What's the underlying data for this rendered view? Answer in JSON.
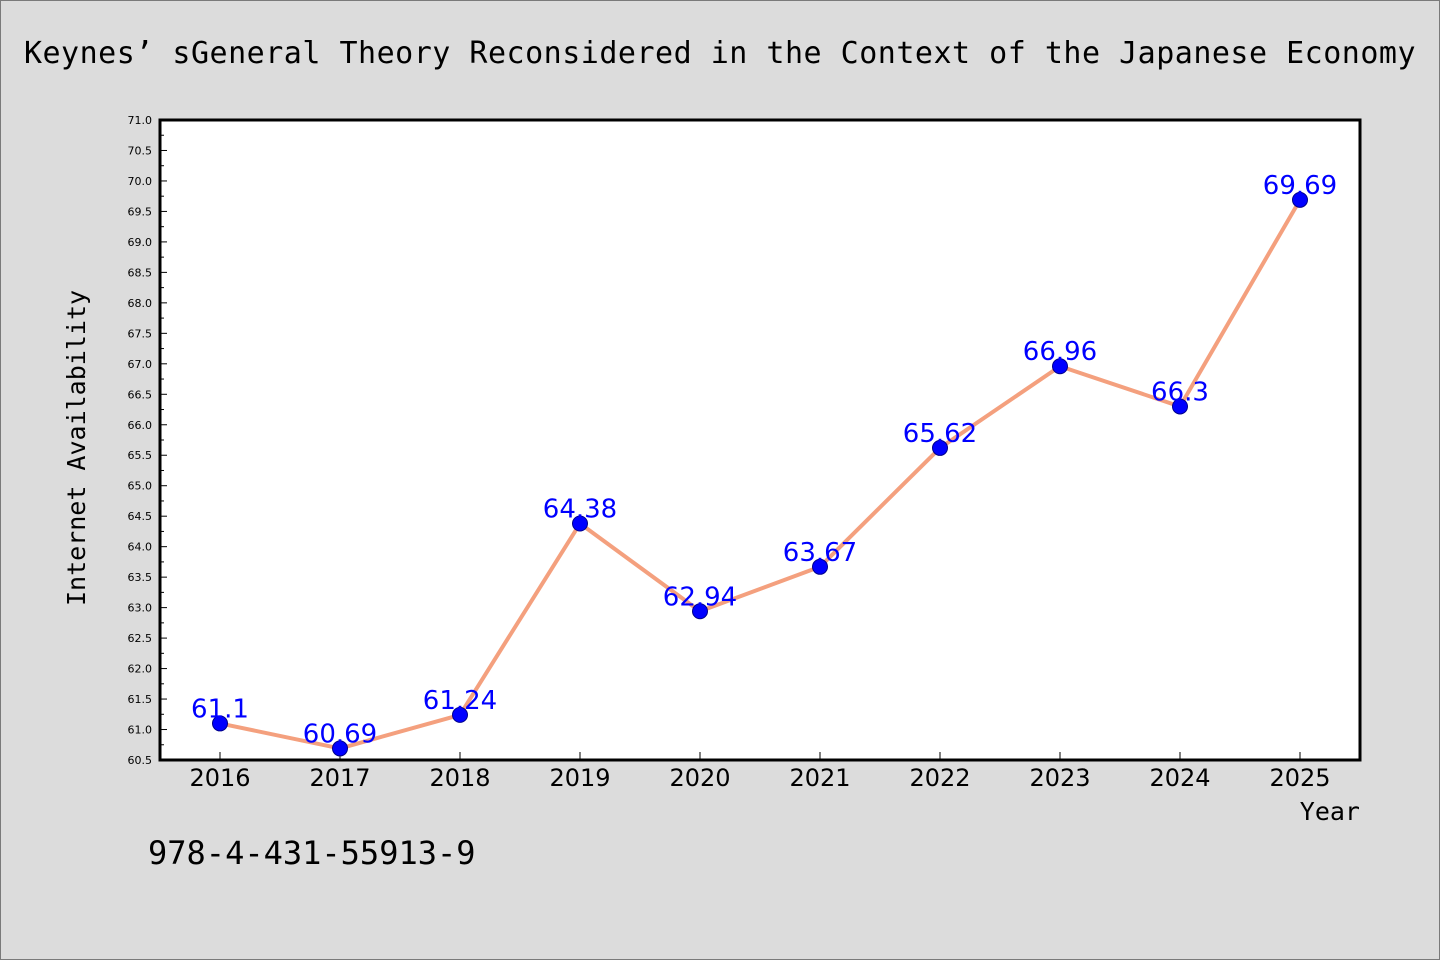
{
  "title": "Keynes’ sGeneral Theory Reconsidered in the Context of the Japanese Economy",
  "footer_text": "978-4-431-55913-9",
  "colors": {
    "background": "#dcdcdc",
    "plot_background": "#ffffff",
    "line": "#f4a07e",
    "marker": "#0000ff",
    "data_label": "#0000ff"
  },
  "chart_data": {
    "type": "line",
    "title": "Keynes’ sGeneral Theory Reconsidered in the Context of the Japanese Economy",
    "xlabel": "Year",
    "ylabel": "Internet Availability",
    "categories": [
      "2016",
      "2017",
      "2018",
      "2019",
      "2020",
      "2021",
      "2022",
      "2023",
      "2024",
      "2025"
    ],
    "series": [
      {
        "values": [
          61.1,
          60.69,
          61.24,
          64.38,
          62.94,
          63.67,
          65.62,
          66.96,
          66.3,
          69.69
        ],
        "data_labels": [
          "61.1",
          "60.69",
          "61.24",
          "64.38",
          "62.94",
          "63.67",
          "65.62",
          "66.96",
          "66.3",
          "69.69"
        ]
      }
    ],
    "ylim": [
      60.5,
      71.0
    ],
    "yticks": [
      "60.5",
      "61.0",
      "61.5",
      "62.0",
      "62.5",
      "63.0",
      "63.5",
      "64.0",
      "64.5",
      "65.0",
      "65.5",
      "66.0",
      "66.5",
      "67.0",
      "67.5",
      "68.0",
      "68.5",
      "69.0",
      "69.5",
      "70.0",
      "70.5",
      "71.0"
    ],
    "grid": false,
    "legend": "none",
    "marker": "circle"
  }
}
